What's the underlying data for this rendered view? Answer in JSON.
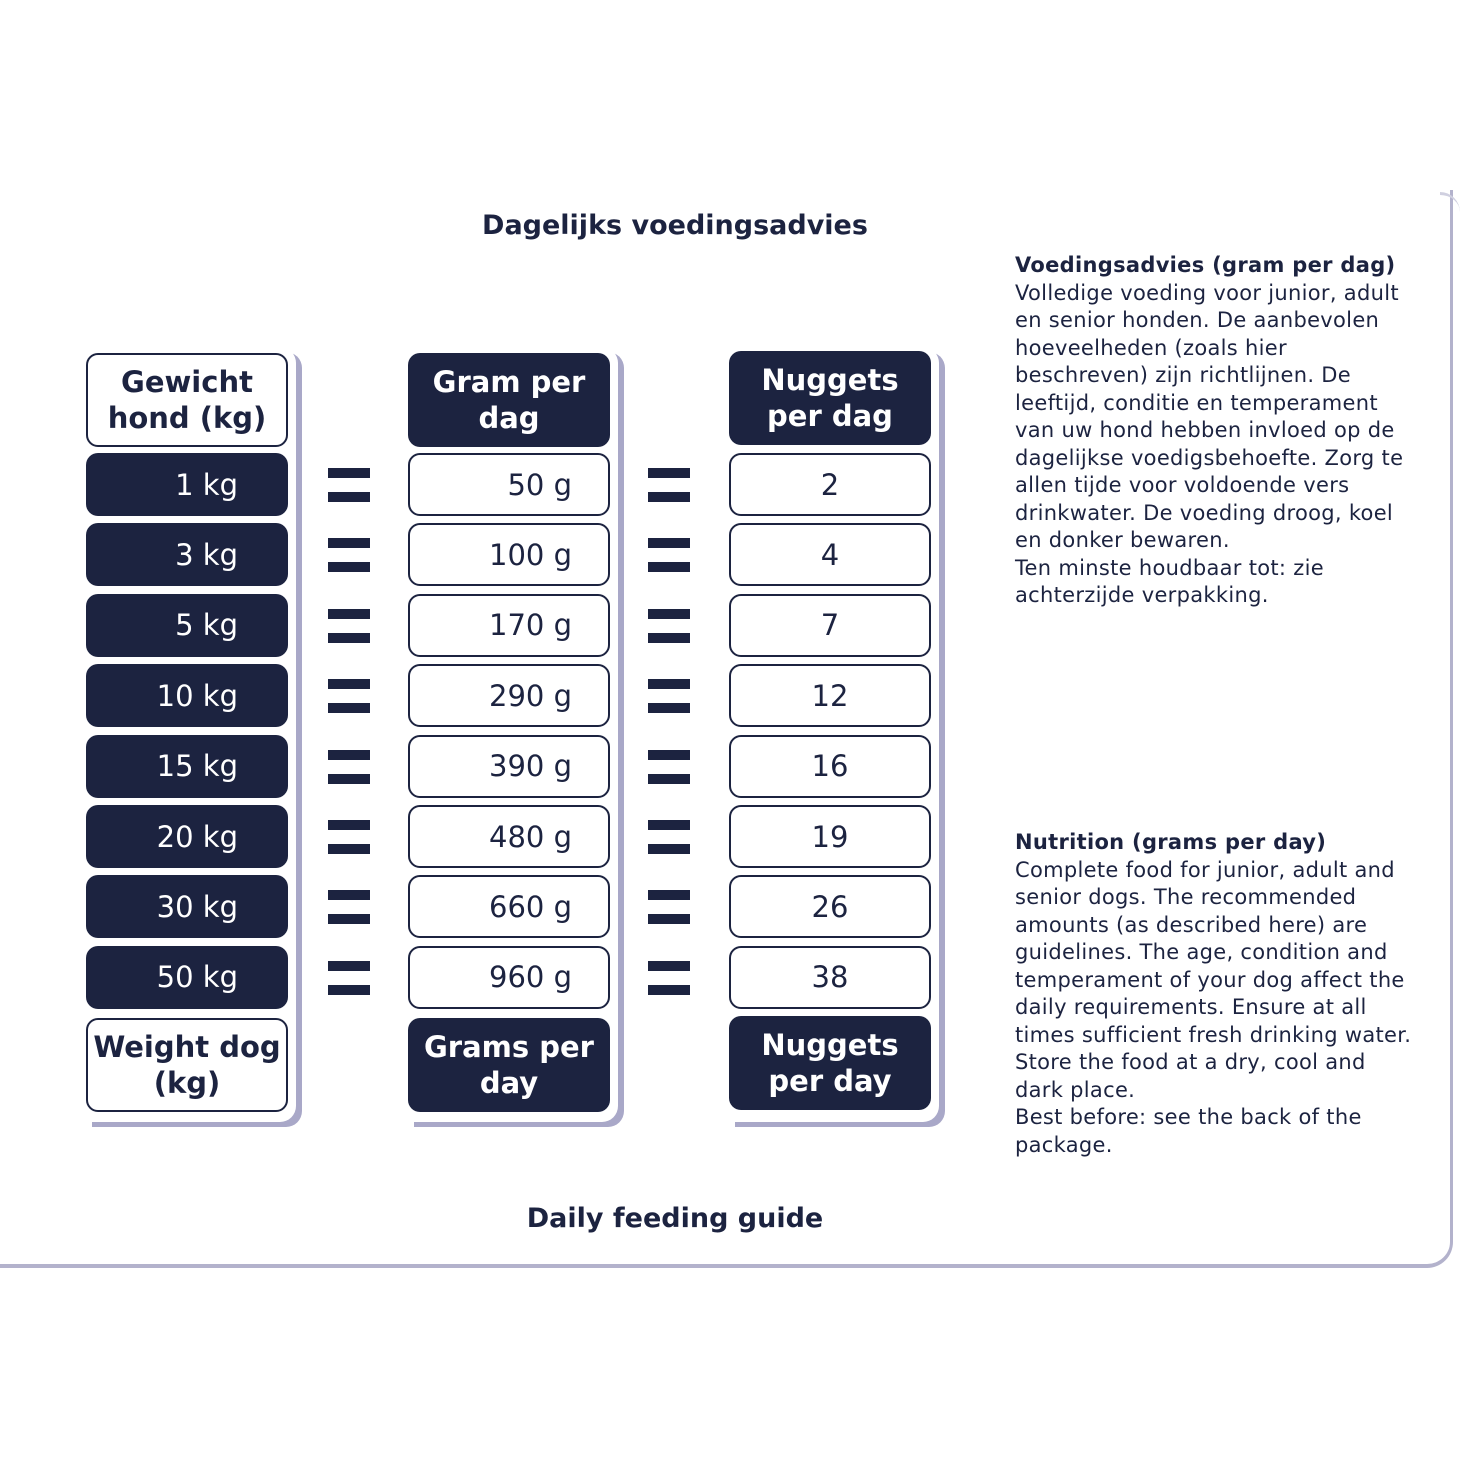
{
  "title_nl": "Dagelijks voedingsadvies",
  "title_en": "Daily feeding guide",
  "columns": {
    "weight": {
      "header": "Gewicht hond (kg)",
      "footer": "Weight dog (kg)"
    },
    "grams": {
      "header": "Gram per dag",
      "footer": "Grams per day"
    },
    "nuggets": {
      "header": "Nuggets per dag",
      "footer": "Nuggets per day"
    }
  },
  "rows": [
    {
      "weight": "1 kg",
      "grams": "50 g",
      "nuggets": "2"
    },
    {
      "weight": "3 kg",
      "grams": "100 g",
      "nuggets": "4"
    },
    {
      "weight": "5 kg",
      "grams": "170 g",
      "nuggets": "7"
    },
    {
      "weight": "10 kg",
      "grams": "290 g",
      "nuggets": "12"
    },
    {
      "weight": "15 kg",
      "grams": "390 g",
      "nuggets": "16"
    },
    {
      "weight": "20 kg",
      "grams": "480 g",
      "nuggets": "19"
    },
    {
      "weight": "30 kg",
      "grams": "660 g",
      "nuggets": "26"
    },
    {
      "weight": "50 kg",
      "grams": "960 g",
      "nuggets": "38"
    }
  ],
  "info_nl": {
    "heading": "Voedingsadvies (gram per dag)",
    "body": "Volledige voeding voor junior, adult en senior honden. De aanbevolen hoeveelheden (zoals hier beschreven) zijn richtlijnen. De leeftijd, conditie en temperament van uw hond hebben invloed op de dagelijkse voedigsbehoefte.  Zorg te allen tijde voor voldoende vers drinkwater. De voeding droog, koel en donker bewaren.",
    "footer": "Ten minste houdbaar tot: zie achterzijde verpakking."
  },
  "info_en": {
    "heading": "Nutrition (grams per day)",
    "body": "Complete food for junior, adult and senior dogs. The recommended amounts (as described here) are guidelines. The age, condition and temperament of your dog affect the daily requirements. Ensure at all times sufficient fresh drinking water. Store the food at a dry, cool and dark place.",
    "footer": "Best before: see the back of the package."
  },
  "colors": {
    "navy": "#1c2340",
    "shadow": "#a9a8c8"
  }
}
